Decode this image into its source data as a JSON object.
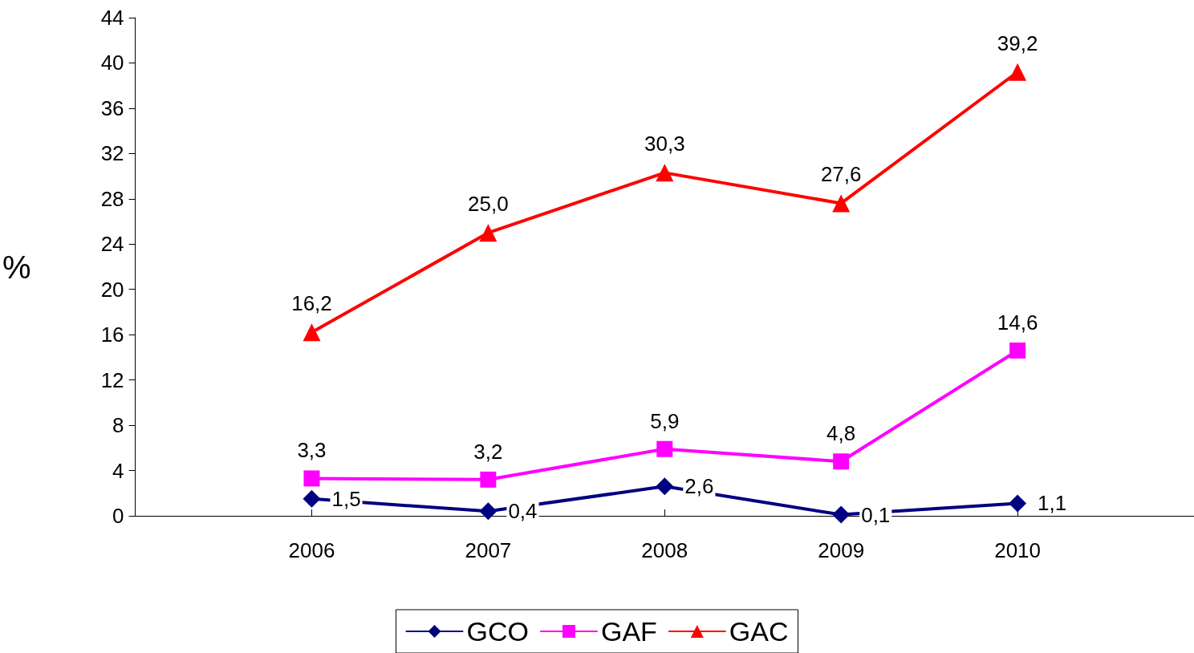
{
  "chart_data": {
    "type": "line",
    "ylabel": "%",
    "x": [
      2006,
      2007,
      2008,
      2009,
      2010
    ],
    "xlim": [
      2005,
      2011
    ],
    "xticks": [
      2006,
      2007,
      2008,
      2009,
      2010
    ],
    "ylim": [
      0,
      44
    ],
    "yticks": [
      0,
      4,
      8,
      12,
      16,
      20,
      24,
      28,
      32,
      36,
      40,
      44
    ],
    "grid": false,
    "legend": "bottom",
    "line_style": "solid",
    "series": [
      {
        "name": "GCO",
        "color": "#000080",
        "marker": "diamond",
        "values": [
          1.5,
          0.4,
          2.6,
          0.1,
          1.1
        ],
        "value_labels": [
          "1,5",
          "0,4",
          "2,6",
          "0,1",
          "1,1"
        ]
      },
      {
        "name": "GAF",
        "color": "#ff00ff",
        "marker": "square",
        "values": [
          3.3,
          3.2,
          5.9,
          4.8,
          14.6
        ],
        "value_labels": [
          "3,3",
          "3,2",
          "5,9",
          "4,8",
          "14,6"
        ]
      },
      {
        "name": "GAC",
        "color": "#ff0000",
        "marker": "triangle",
        "values": [
          16.2,
          25.0,
          30.3,
          27.6,
          39.2
        ],
        "value_labels": [
          "16,2",
          "25,0",
          "30,3",
          "27,6",
          "39,2"
        ]
      }
    ]
  }
}
